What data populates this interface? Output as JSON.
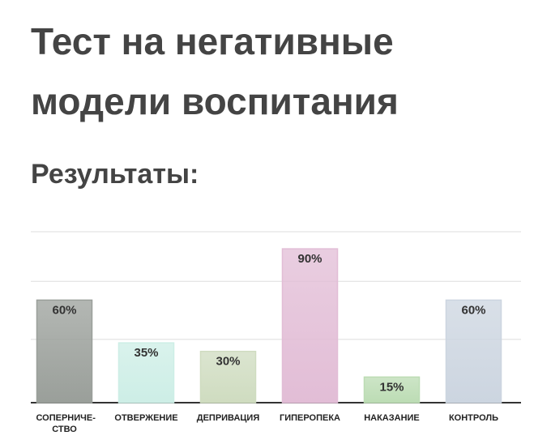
{
  "chart_data": {
    "type": "bar",
    "title": "Тест на негативные модели воспитания",
    "subtitle": "Результаты:",
    "categories": [
      "СОПЕРНИЧЕ-СТВО",
      "ОТВЕРЖЕНИЕ",
      "ДЕПРИВАЦИЯ",
      "ГИПЕРОПЕКА",
      "НАКАЗАНИЕ",
      "КОНТРОЛЬ"
    ],
    "values": [
      60,
      35,
      30,
      90,
      15,
      60
    ],
    "value_labels": [
      "60%",
      "35%",
      "30%",
      "90%",
      "15%",
      "60%"
    ],
    "colors": [
      "#9a9f9a",
      "#cdeee6",
      "#cfdcc0",
      "#e2bdd6",
      "#bcdcb4",
      "#ccd5e0"
    ],
    "ylim": [
      0,
      100
    ],
    "yticks": [
      0,
      37,
      71,
      100
    ],
    "grid": true
  }
}
